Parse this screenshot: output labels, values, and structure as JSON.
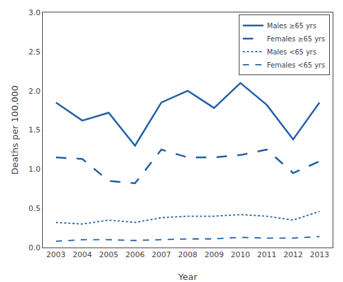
{
  "chart_data": {
    "type": "line",
    "xlabel": "Year",
    "ylabel": "Deaths per 100,000",
    "x": [
      2003,
      2004,
      2005,
      2006,
      2007,
      2008,
      2009,
      2010,
      2011,
      2012,
      2013
    ],
    "series": [
      {
        "name": "Males ≥65 yrs",
        "color": "#1f5fa6",
        "line_style": "solid",
        "values": [
          1.85,
          1.62,
          1.72,
          1.3,
          1.85,
          2.0,
          1.78,
          2.1,
          1.82,
          1.38,
          1.85
        ]
      },
      {
        "name": "Females ≥65 yrs",
        "color": "#1f5fa6",
        "line_style": "longdash",
        "values": [
          1.15,
          1.13,
          0.85,
          0.82,
          1.25,
          1.15,
          1.15,
          1.18,
          1.25,
          0.95,
          1.1
        ]
      },
      {
        "name": "Males <65 yrs",
        "color": "#1f5fa6",
        "line_style": "dot",
        "values": [
          0.32,
          0.3,
          0.35,
          0.32,
          0.38,
          0.4,
          0.4,
          0.42,
          0.4,
          0.35,
          0.46
        ]
      },
      {
        "name": "Females <65 yrs",
        "color": "#1f5fa6",
        "line_style": "dash",
        "values": [
          0.08,
          0.1,
          0.1,
          0.09,
          0.1,
          0.11,
          0.11,
          0.13,
          0.12,
          0.12,
          0.14
        ]
      }
    ],
    "xlim": [
      2002.5,
      2013.5
    ],
    "xticks": [
      2003,
      2004,
      2005,
      2006,
      2007,
      2008,
      2009,
      2010,
      2011,
      2012,
      2013
    ],
    "ylim": [
      0,
      3.0
    ],
    "yticks": [
      {
        "value": 0.0,
        "label": "0.0"
      },
      0.5,
      {
        "value": 1.0,
        "label": "1.0"
      },
      1.5,
      {
        "value": 2.0,
        "label": "2.0"
      },
      2.5,
      {
        "value": 3.0,
        "label": "3.0"
      }
    ],
    "grid": false,
    "legend": "upper right"
  }
}
